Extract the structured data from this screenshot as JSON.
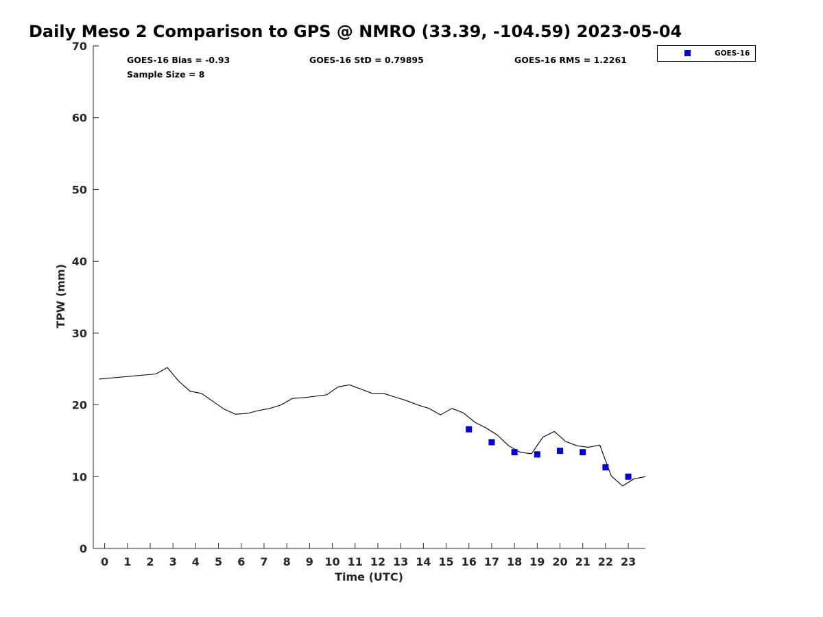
{
  "chart_data": {
    "type": "line",
    "title": "Daily Meso 2 Comparison to GPS @ NMRO (33.39, -104.59) 2023-05-04",
    "xlabel": "Time (UTC)",
    "ylabel": "TPW (mm)",
    "xlim": [
      -0.5,
      23.75
    ],
    "ylim": [
      0,
      70
    ],
    "x_ticks": [
      "0",
      "1",
      "2",
      "3",
      "4",
      "5",
      "6",
      "7",
      "8",
      "9",
      "10",
      "11",
      "12",
      "13",
      "14",
      "15",
      "16",
      "17",
      "18",
      "19",
      "20",
      "21",
      "22",
      "23"
    ],
    "y_ticks": [
      "0",
      "10",
      "20",
      "30",
      "40",
      "50",
      "60",
      "70"
    ],
    "grid": false,
    "legend_position": "top-right outside",
    "stats": {
      "bias": "GOES-16 Bias = -0.93",
      "std": "GOES-16 StD = 0.79895",
      "rms": "GOES-16 RMS = 1.2261",
      "sample": "Sample Size = 8"
    },
    "series": [
      {
        "kind": "line",
        "color": "#000000",
        "x": [
          -0.25,
          2.25,
          2.75,
          3.25,
          3.75,
          4.25,
          4.75,
          5.25,
          5.75,
          6.25,
          6.75,
          7.25,
          7.75,
          8.25,
          8.75,
          9.25,
          9.75,
          10.25,
          10.75,
          11.25,
          11.75,
          12.25,
          12.75,
          13.25,
          13.75,
          14.25,
          14.75,
          15.25,
          15.75,
          16.25,
          16.75,
          17.25,
          17.75,
          18.25,
          18.75,
          19.25,
          19.75,
          20.25,
          20.75,
          21.25,
          21.75,
          22.25,
          22.75,
          23.25,
          23.75
        ],
        "y": [
          23.6,
          24.3,
          25.2,
          23.3,
          21.9,
          21.6,
          20.5,
          19.4,
          18.7,
          18.8,
          19.2,
          19.5,
          20.0,
          20.9,
          21.0,
          21.2,
          21.4,
          22.5,
          22.8,
          22.2,
          21.6,
          21.6,
          21.1,
          20.6,
          20.0,
          19.5,
          18.6,
          19.5,
          18.9,
          17.6,
          16.8,
          15.8,
          14.3,
          13.4,
          13.2,
          15.5,
          16.3,
          14.9,
          14.3,
          14.1,
          14.4,
          10.1,
          8.7,
          9.7,
          10.0
        ]
      },
      {
        "kind": "scatter",
        "name": "GOES-16",
        "color": "#0000e0",
        "x": [
          16,
          17,
          18,
          19,
          20,
          21,
          22,
          23
        ],
        "y": [
          16.6,
          14.8,
          13.4,
          13.1,
          13.6,
          13.4,
          11.3,
          10.0
        ]
      }
    ]
  }
}
